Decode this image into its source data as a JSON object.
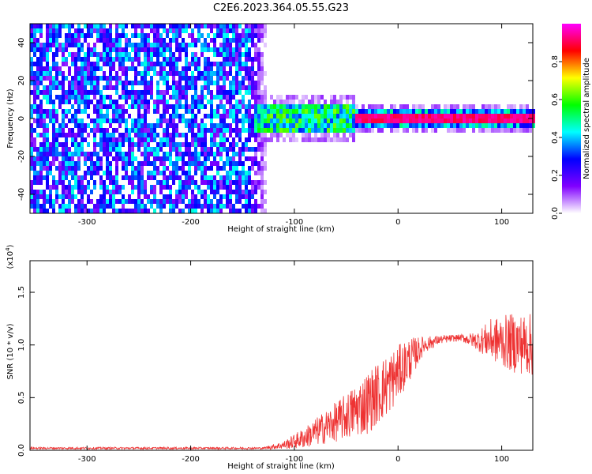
{
  "title": "C2E6.2023.364.05.55.G23",
  "chart_data": [
    {
      "type": "heatmap",
      "xlabel": "Height of straight line (km)",
      "ylabel": "Frequency (Hz)",
      "xlim": [
        -355,
        130
      ],
      "ylim": [
        -50,
        50
      ],
      "x_ticks": [
        -300,
        -200,
        -100,
        0,
        100
      ],
      "x_tick_labels": [
        "-300",
        "-200",
        "-100",
        "0",
        "100"
      ],
      "y_ticks": [
        -40,
        -20,
        0,
        20,
        40
      ],
      "y_tick_labels": [
        "-40",
        "-20",
        "0",
        "20",
        "40"
      ],
      "colorbar": {
        "label": "Normalized spectral amplitude",
        "range": [
          0,
          1
        ],
        "ticks": [
          0,
          0.2,
          0.4,
          0.6,
          0.8
        ],
        "tick_labels": [
          "0.0",
          "0.2",
          "0.4",
          "0.6",
          "0.8"
        ],
        "colormap": [
          "#ffffff",
          "#8000ff",
          "#0000ff",
          "#00ffff",
          "#00ff00",
          "#ffff00",
          "#ff0000",
          "#ff00ff"
        ]
      },
      "features": {
        "noise_region_x": [
          -355,
          -125
        ],
        "signal_band_x": [
          -140,
          130
        ],
        "signal_center_hz": 0,
        "signal_halfwidth_hz": 4,
        "strong_signal_from_x": -40
      }
    },
    {
      "type": "line",
      "xlabel": "Height of straight line (km)",
      "ylabel": "SNR (10 * v/v)",
      "y_scale_label": "(x10",
      "y_scale_exponent": "4",
      "y_scale_suffix": ")",
      "xlim": [
        -355,
        130
      ],
      "ylim": [
        0,
        1.8
      ],
      "x_ticks": [
        -300,
        -200,
        -100,
        0,
        100
      ],
      "x_tick_labels": [
        "-300",
        "-200",
        "-100",
        "0",
        "100"
      ],
      "y_ticks": [
        0,
        0.5,
        1.0,
        1.5
      ],
      "y_tick_labels": [
        "0.0",
        "0.5",
        "1.0",
        "1.5"
      ],
      "line_color": "#ee3333",
      "series": [
        {
          "envelope": [
            {
              "x": -355,
              "y": 0.02,
              "amp": 0.01
            },
            {
              "x": -130,
              "y": 0.02,
              "amp": 0.01
            },
            {
              "x": -110,
              "y": 0.05,
              "amp": 0.04
            },
            {
              "x": -90,
              "y": 0.12,
              "amp": 0.1
            },
            {
              "x": -70,
              "y": 0.22,
              "amp": 0.16
            },
            {
              "x": -50,
              "y": 0.32,
              "amp": 0.22
            },
            {
              "x": -30,
              "y": 0.45,
              "amp": 0.3
            },
            {
              "x": -10,
              "y": 0.62,
              "amp": 0.3
            },
            {
              "x": 10,
              "y": 0.85,
              "amp": 0.22
            },
            {
              "x": 25,
              "y": 1.0,
              "amp": 0.08
            },
            {
              "x": 40,
              "y": 1.05,
              "amp": 0.04
            },
            {
              "x": 60,
              "y": 1.07,
              "amp": 0.03
            },
            {
              "x": 75,
              "y": 1.04,
              "amp": 0.08
            },
            {
              "x": 90,
              "y": 1.05,
              "amp": 0.2
            },
            {
              "x": 110,
              "y": 1.02,
              "amp": 0.28
            },
            {
              "x": 130,
              "y": 1.0,
              "amp": 0.3
            }
          ]
        }
      ]
    }
  ]
}
